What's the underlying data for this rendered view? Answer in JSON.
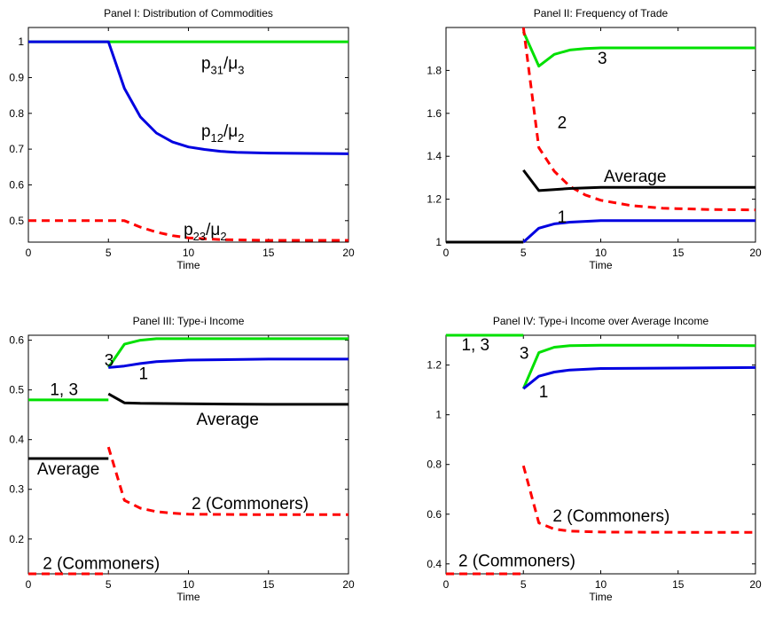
{
  "chart_data": [
    {
      "type": "line",
      "title": "Panel I: Distribution of Commodities",
      "xlabel": "Time",
      "ylabel": "",
      "xlim": [
        0,
        20
      ],
      "ylim": [
        0.44,
        1.04
      ],
      "xticks": [
        "0",
        "5",
        "10",
        "15",
        "20"
      ],
      "xtick_values": [
        0,
        5,
        10,
        15,
        20
      ],
      "yticks": [
        "0.5",
        "0.6",
        "0.7",
        "0.8",
        "0.9",
        "1"
      ],
      "ytick_values": [
        0.5,
        0.6,
        0.7,
        0.8,
        0.9,
        1.0
      ],
      "series": [
        {
          "color": "#00e000",
          "dash": "solid",
          "points": [
            [
              0,
              1
            ],
            [
              5,
              1
            ],
            [
              6,
              1
            ],
            [
              8,
              1
            ],
            [
              10,
              1
            ],
            [
              15,
              1
            ],
            [
              20,
              1
            ]
          ]
        },
        {
          "color": "#0000e0",
          "dash": "solid",
          "points": [
            [
              0,
              1
            ],
            [
              5,
              1
            ],
            [
              6,
              0.87
            ],
            [
              7,
              0.79
            ],
            [
              8,
              0.745
            ],
            [
              9,
              0.72
            ],
            [
              10,
              0.706
            ],
            [
              11,
              0.699
            ],
            [
              12,
              0.694
            ],
            [
              13,
              0.691
            ],
            [
              15,
              0.689
            ],
            [
              20,
              0.687
            ]
          ]
        },
        {
          "color": "#ff0000",
          "dash": "dashed",
          "points": [
            [
              0,
              0.5
            ],
            [
              5,
              0.5
            ],
            [
              6,
              0.5
            ],
            [
              7,
              0.482
            ],
            [
              8,
              0.468
            ],
            [
              9,
              0.458
            ],
            [
              10,
              0.452
            ],
            [
              12,
              0.447
            ],
            [
              15,
              0.445
            ],
            [
              20,
              0.445
            ]
          ]
        }
      ],
      "annotations": [
        {
          "main": "p",
          "sub": "31",
          "mid": "/μ",
          "sub2": "3",
          "x": 10.8,
          "y": 0.925
        },
        {
          "main": "p",
          "sub": "12",
          "mid": "/μ",
          "sub2": "2",
          "x": 10.8,
          "y": 0.735
        },
        {
          "main": "p",
          "sub": "23",
          "mid": "/μ",
          "sub2": "2",
          "x": 9.7,
          "y": 0.46
        }
      ]
    },
    {
      "type": "line",
      "title": "Panel II: Frequency of Trade",
      "xlabel": "Time",
      "ylabel": "",
      "xlim": [
        0,
        20
      ],
      "ylim": [
        1,
        2
      ],
      "xticks": [
        "0",
        "5",
        "10",
        "15",
        "20"
      ],
      "xtick_values": [
        0,
        5,
        10,
        15,
        20
      ],
      "yticks": [
        "1",
        "1.2",
        "1.4",
        "1.6",
        "1.8"
      ],
      "ytick_values": [
        1.0,
        1.2,
        1.4,
        1.6,
        1.8
      ],
      "series": [
        {
          "color": "#00e000",
          "dash": "solid",
          "points": [
            [
              5,
              1.98
            ],
            [
              6,
              1.82
            ],
            [
              7,
              1.875
            ],
            [
              8,
              1.895
            ],
            [
              9,
              1.902
            ],
            [
              10,
              1.905
            ],
            [
              15,
              1.905
            ],
            [
              20,
              1.905
            ]
          ]
        },
        {
          "color": "#ff0000",
          "dash": "dashed",
          "points": [
            [
              5,
              2.0
            ],
            [
              6,
              1.44
            ],
            [
              7,
              1.33
            ],
            [
              8,
              1.26
            ],
            [
              9,
              1.22
            ],
            [
              10,
              1.195
            ],
            [
              12,
              1.17
            ],
            [
              14,
              1.158
            ],
            [
              17,
              1.152
            ],
            [
              20,
              1.15
            ]
          ]
        },
        {
          "color": "#000000",
          "dash": "solid",
          "points": [
            [
              0,
              1
            ],
            [
              5,
              1
            ]
          ]
        },
        {
          "color": "#000000",
          "dash": "solid",
          "points": [
            [
              5,
              1.335
            ],
            [
              6,
              1.24
            ],
            [
              7,
              1.245
            ],
            [
              8,
              1.25
            ],
            [
              10,
              1.255
            ],
            [
              15,
              1.255
            ],
            [
              20,
              1.255
            ]
          ]
        },
        {
          "color": "#0000e0",
          "dash": "solid",
          "points": [
            [
              5,
              1.0
            ],
            [
              6,
              1.065
            ],
            [
              7,
              1.085
            ],
            [
              8,
              1.093
            ],
            [
              10,
              1.1
            ],
            [
              15,
              1.1
            ],
            [
              20,
              1.1
            ]
          ]
        }
      ],
      "annotations": [
        {
          "text": "3",
          "x": 9.8,
          "y": 1.83
        },
        {
          "text": "2",
          "x": 7.2,
          "y": 1.53
        },
        {
          "text": "Average",
          "x": 10.2,
          "y": 1.28
        },
        {
          "text": "1",
          "x": 7.2,
          "y": 1.09
        }
      ]
    },
    {
      "type": "line",
      "title": "Panel III: Type-i Income",
      "xlabel": "Time",
      "ylabel": "",
      "xlim": [
        0,
        20
      ],
      "ylim": [
        0.13,
        0.61
      ],
      "xticks": [
        "0",
        "5",
        "10",
        "15",
        "20"
      ],
      "xtick_values": [
        0,
        5,
        10,
        15,
        20
      ],
      "yticks": [
        "0.2",
        "0.3",
        "0.4",
        "0.5",
        "0.6"
      ],
      "ytick_values": [
        0.2,
        0.3,
        0.4,
        0.5,
        0.6
      ],
      "series": [
        {
          "color": "#00e000",
          "dash": "solid",
          "points": [
            [
              0,
              0.48
            ],
            [
              5,
              0.48
            ]
          ]
        },
        {
          "color": "#00e000",
          "dash": "solid",
          "points": [
            [
              5,
              0.545
            ],
            [
              6,
              0.592
            ],
            [
              7,
              0.6
            ],
            [
              8,
              0.603
            ],
            [
              10,
              0.603
            ],
            [
              15,
              0.603
            ],
            [
              20,
              0.603
            ]
          ]
        },
        {
          "color": "#0000e0",
          "dash": "solid",
          "points": [
            [
              5,
              0.545
            ],
            [
              6,
              0.548
            ],
            [
              7,
              0.553
            ],
            [
              8,
              0.557
            ],
            [
              10,
              0.56
            ],
            [
              15,
              0.562
            ],
            [
              20,
              0.562
            ]
          ]
        },
        {
          "color": "#000000",
          "dash": "solid",
          "points": [
            [
              0,
              0.362
            ],
            [
              5,
              0.362
            ]
          ]
        },
        {
          "color": "#000000",
          "dash": "solid",
          "points": [
            [
              5,
              0.492
            ],
            [
              6,
              0.474
            ],
            [
              7,
              0.473
            ],
            [
              10,
              0.472
            ],
            [
              15,
              0.471
            ],
            [
              20,
              0.471
            ]
          ]
        },
        {
          "color": "#ff0000",
          "dash": "dashed",
          "points": [
            [
              0,
              0.13
            ],
            [
              5,
              0.13
            ]
          ]
        },
        {
          "color": "#ff0000",
          "dash": "dashed",
          "points": [
            [
              5,
              0.385
            ],
            [
              6,
              0.278
            ],
            [
              7,
              0.262
            ],
            [
              8,
              0.255
            ],
            [
              9,
              0.252
            ],
            [
              10,
              0.25
            ],
            [
              15,
              0.249
            ],
            [
              20,
              0.249
            ]
          ]
        }
      ],
      "annotations": [
        {
          "text": "3",
          "x": 4.75,
          "y": 0.548
        },
        {
          "text": "1",
          "x": 6.9,
          "y": 0.522
        },
        {
          "text": "1, 3",
          "x": 1.35,
          "y": 0.49
        },
        {
          "text": "Average",
          "x": 10.5,
          "y": 0.43
        },
        {
          "text": "Average",
          "x": 0.55,
          "y": 0.33
        },
        {
          "text": "2 (Commoners)",
          "x": 10.2,
          "y": 0.26
        },
        {
          "text": "2 (Commoners)",
          "x": 0.9,
          "y": 0.14
        }
      ]
    },
    {
      "type": "line",
      "title": "Panel IV: Type-i Income over Average Income",
      "xlabel": "Time",
      "ylabel": "",
      "xlim": [
        0,
        20
      ],
      "ylim": [
        0.36,
        1.32
      ],
      "xticks": [
        "0",
        "5",
        "10",
        "15",
        "20"
      ],
      "xtick_values": [
        0,
        5,
        10,
        15,
        20
      ],
      "yticks": [
        "0.4",
        "0.6",
        "0.8",
        "1",
        "1.2"
      ],
      "ytick_values": [
        0.4,
        0.6,
        0.8,
        1.0,
        1.2
      ],
      "series": [
        {
          "color": "#00e000",
          "dash": "solid",
          "points": [
            [
              0,
              1.32
            ],
            [
              5,
              1.32
            ]
          ]
        },
        {
          "color": "#00e000",
          "dash": "solid",
          "points": [
            [
              5,
              1.105
            ],
            [
              6,
              1.25
            ],
            [
              7,
              1.272
            ],
            [
              8,
              1.278
            ],
            [
              10,
              1.28
            ],
            [
              15,
              1.28
            ],
            [
              20,
              1.278
            ]
          ]
        },
        {
          "color": "#0000e0",
          "dash": "solid",
          "points": [
            [
              5,
              1.105
            ],
            [
              6,
              1.155
            ],
            [
              7,
              1.172
            ],
            [
              8,
              1.18
            ],
            [
              10,
              1.186
            ],
            [
              15,
              1.188
            ],
            [
              20,
              1.19
            ]
          ]
        },
        {
          "color": "#ff0000",
          "dash": "dashed",
          "points": [
            [
              0,
              0.36
            ],
            [
              5,
              0.36
            ]
          ]
        },
        {
          "color": "#ff0000",
          "dash": "dashed",
          "points": [
            [
              5,
              0.795
            ],
            [
              6,
              0.565
            ],
            [
              7,
              0.54
            ],
            [
              8,
              0.532
            ],
            [
              10,
              0.528
            ],
            [
              15,
              0.527
            ],
            [
              20,
              0.527
            ]
          ]
        }
      ],
      "annotations": [
        {
          "text": "1, 3",
          "x": 1.0,
          "y": 1.26
        },
        {
          "text": "3",
          "x": 4.75,
          "y": 1.225
        },
        {
          "text": "1",
          "x": 6.0,
          "y": 1.07
        },
        {
          "text": "2 (Commoners)",
          "x": 6.9,
          "y": 0.57
        },
        {
          "text": "2 (Commoners)",
          "x": 0.8,
          "y": 0.39
        }
      ]
    }
  ]
}
